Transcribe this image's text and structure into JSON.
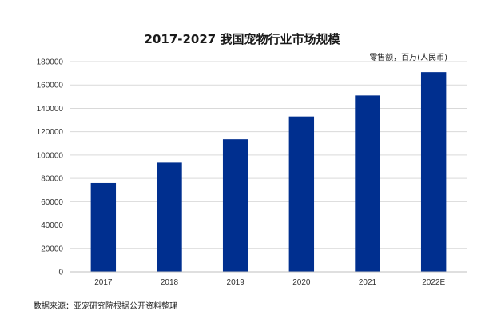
{
  "chart_data": {
    "type": "bar",
    "title": "2017-2027 我国宠物行业市场规模",
    "ylabel": "零售额，百万(人民币)",
    "xlabel": "",
    "categories": [
      "2017",
      "2018",
      "2019",
      "2020",
      "2021",
      "2022E"
    ],
    "values": [
      76000,
      93500,
      113500,
      133000,
      151000,
      171000
    ],
    "ylim": [
      0,
      180000
    ],
    "yticks": [
      0,
      20000,
      40000,
      60000,
      80000,
      100000,
      120000,
      140000,
      160000,
      180000
    ],
    "ytick_labels": [
      "0",
      "20000",
      "40000",
      "60000",
      "80000",
      "100000",
      "120000",
      "140000",
      "160000",
      "180000"
    ],
    "grid": true,
    "legend": "none",
    "bar_color": "#002f8f",
    "source": "数据来源：亚宠研究院根据公开资料整理"
  }
}
